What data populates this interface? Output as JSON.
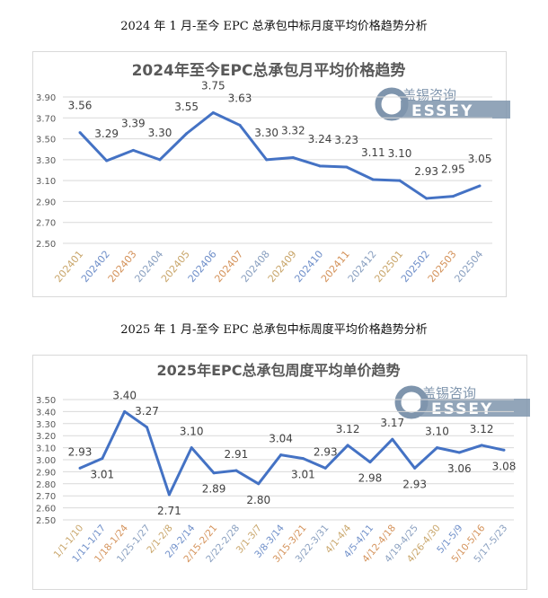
{
  "headings": {
    "monthly": "2024 年 1 月-至今 EPC 总承包中标月度平均价格趋势分析",
    "weekly": "2025 年 1 月-至今 EPC 总承包中标周度平均价格趋势分析"
  },
  "logo": {
    "cn": "盖锡咨询",
    "en": "ESSEY",
    "letter": "G"
  },
  "colors": {
    "line": "#4472C4",
    "grid": "#d9d9d9",
    "label": "#404040"
  },
  "chart_data": [
    {
      "type": "line",
      "title": "2024年至今EPC总承包月平均价格趋势",
      "categories": [
        "202401",
        "202402",
        "202403",
        "202404",
        "202405",
        "202406",
        "202407",
        "202408",
        "202409",
        "202410",
        "202411",
        "202412",
        "202501",
        "202502",
        "202503",
        "202504"
      ],
      "values": [
        3.56,
        3.29,
        3.39,
        3.3,
        3.55,
        3.75,
        3.63,
        3.3,
        3.32,
        3.24,
        3.23,
        3.11,
        3.1,
        2.93,
        2.95,
        3.05
      ],
      "labels": [
        "3.56",
        "3.29",
        "3.39",
        "3.30",
        "3.55",
        "3.75",
        "3.63",
        "3.30",
        "3.32",
        "3.24",
        "3.23",
        "3.11",
        "3.10",
        "2.93",
        "2.95",
        "3.05"
      ],
      "label_pos": [
        "above",
        "above",
        "above",
        "above",
        "above",
        "above",
        "above",
        "above",
        "above",
        "above",
        "above",
        "above",
        "above",
        "above",
        "above",
        "above"
      ],
      "yticks": [
        "3.90",
        "3.70",
        "3.50",
        "3.30",
        "3.10",
        "2.90",
        "2.70",
        "2.50"
      ],
      "ylim": [
        2.5,
        3.9
      ],
      "xlabel": "",
      "ylabel": "",
      "grid": true
    },
    {
      "type": "line",
      "title": "2025年EPC总承包周度平均单价趋势",
      "categories": [
        "1/1-1/10",
        "1/11-1/17",
        "1/18-1/24",
        "1/25-1/27",
        "2/1-2/8",
        "2/9-2/14",
        "2/15-2/21",
        "2/22-2/28",
        "3/1-3/7",
        "3/8-3/14",
        "3/15-3/21",
        "3/22-3/31",
        "4/1-4/4",
        "4/5-4/11",
        "4/12-4/18",
        "4/19-4/25",
        "4/26-4/30",
        "5/1-5/9",
        "5/10-5/16",
        "5/17-5/23"
      ],
      "values": [
        2.93,
        3.01,
        3.4,
        3.27,
        2.71,
        3.1,
        2.89,
        2.91,
        2.8,
        3.04,
        3.01,
        2.93,
        3.12,
        2.98,
        3.17,
        2.93,
        3.1,
        3.06,
        3.12,
        3.08
      ],
      "labels": [
        "2.93",
        "3.01",
        "3.40",
        "3.27",
        "2.71",
        "3.10",
        "2.89",
        "2.91",
        "2.80",
        "3.04",
        "3.01",
        "2.93",
        "3.12",
        "2.98",
        "3.17",
        "2.93",
        "3.10",
        "3.06",
        "3.12",
        "3.08"
      ],
      "label_pos": [
        "above",
        "below",
        "above",
        "above",
        "below",
        "above",
        "below",
        "above",
        "below",
        "above",
        "below",
        "above",
        "above",
        "below",
        "above",
        "below",
        "above",
        "below",
        "above",
        "below"
      ],
      "yticks": [
        "3.50",
        "3.40",
        "3.30",
        "3.20",
        "3.10",
        "3.00",
        "2.90",
        "2.80",
        "2.70",
        "2.60",
        "2.50"
      ],
      "ylim": [
        2.5,
        3.5
      ],
      "xlabel": "",
      "ylabel": "",
      "grid": true
    }
  ]
}
